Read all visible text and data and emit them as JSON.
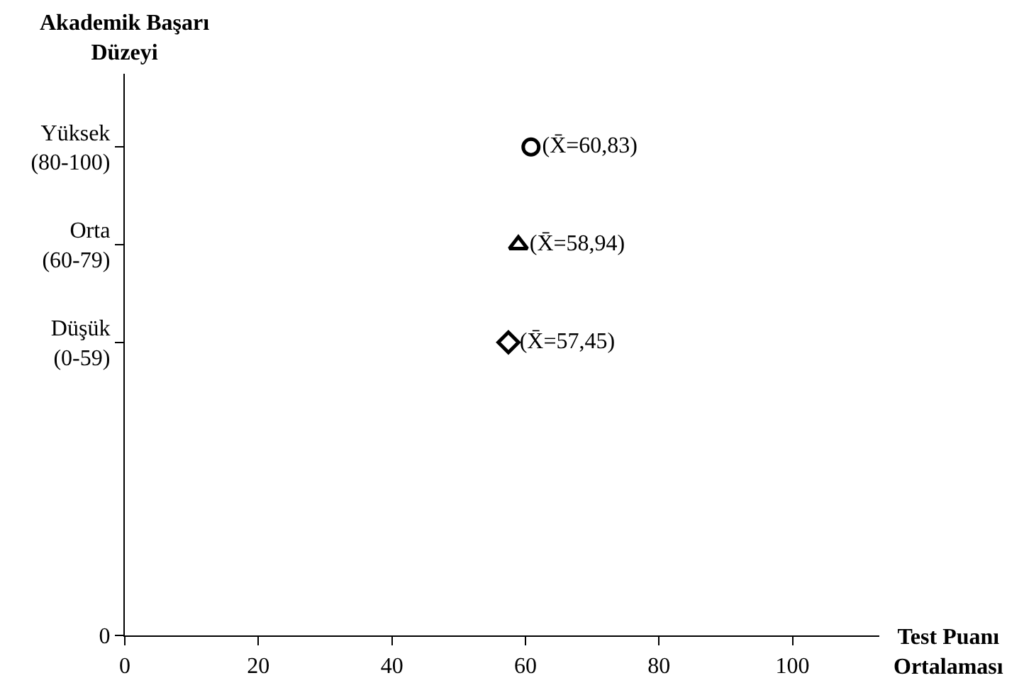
{
  "chart_data": {
    "type": "scatter",
    "orientation": "horizontal",
    "xlabel": "Test Puanı\nOrtalaması",
    "ylabel": "Akademik Başarı\nDüzeyi",
    "xlim": [
      0,
      113
    ],
    "xticks": [
      0,
      20,
      40,
      60,
      80,
      100
    ],
    "categories": [
      "Yüksek\n(80-100)",
      "Orta\n(60-79)",
      "Düşük\n(0-59)",
      null,
      null,
      "0"
    ],
    "series": [
      {
        "color": "#000000",
        "marker": "circle",
        "values": [
          60.83,
          null,
          null,
          null,
          null,
          null
        ],
        "value_labels": [
          "(X̄=60,83)",
          null,
          null,
          null,
          null,
          null
        ]
      },
      {
        "color": "#000000",
        "marker": "triangle",
        "values": [
          null,
          58.94,
          null,
          null,
          null,
          null
        ],
        "value_labels": [
          null,
          "(X̄=58,94)",
          null,
          null,
          null,
          null
        ]
      },
      {
        "color": "#000000",
        "marker": "diamond",
        "values": [
          null,
          null,
          57.45,
          null,
          null,
          null
        ],
        "value_labels": [
          null,
          null,
          "(X̄=57,45)",
          null,
          null,
          null
        ]
      }
    ]
  }
}
